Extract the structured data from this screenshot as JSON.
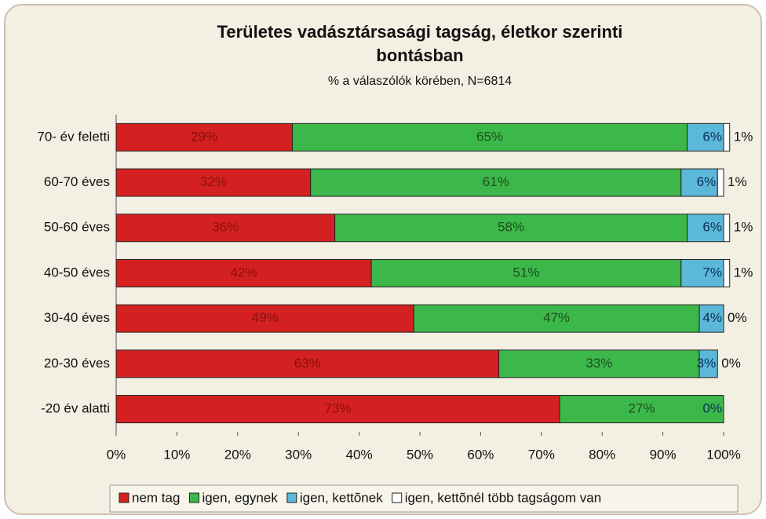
{
  "chart_data": {
    "type": "stacked_barh",
    "title": "Területes vadásztársasági tagság, életkor szerinti bontásban",
    "subtitle": "% a válaszólók körében, N=6814",
    "categories": [
      "70- év feletti",
      "60-70 éves",
      "50-60 éves",
      "40-50 éves",
      "30-40 éves",
      "20-30 éves",
      "-20 év alatti"
    ],
    "series": [
      {
        "name": "nem tag",
        "color": "#d42020",
        "values": [
          29,
          32,
          36,
          42,
          49,
          63,
          73
        ],
        "value_labels": [
          "29%",
          "32%",
          "36%",
          "42%",
          "49%",
          "63%",
          "73%"
        ]
      },
      {
        "name": "igen, egynek",
        "color": "#3cb84a",
        "values": [
          65,
          61,
          58,
          51,
          47,
          33,
          27
        ],
        "value_labels": [
          "65%",
          "61%",
          "58%",
          "51%",
          "47%",
          "33%",
          "27%"
        ]
      },
      {
        "name": "igen, kettõnek",
        "color": "#5cb8d8",
        "values": [
          6,
          6,
          6,
          7,
          4,
          3,
          0
        ],
        "value_labels": [
          "6%",
          "6%",
          "6%",
          "7%",
          "4%",
          "3%",
          "0%"
        ]
      },
      {
        "name": "igen, kettõnél több tagságom van",
        "color": "#ffffff",
        "values": [
          1,
          1,
          1,
          1,
          0,
          0,
          null
        ],
        "value_labels": [
          "1%",
          "1%",
          "1%",
          "1%",
          "0%",
          "0%",
          null
        ]
      }
    ],
    "xlim": [
      0,
      100
    ],
    "xticks": [
      {
        "value": 0,
        "label": "0%"
      },
      {
        "value": 10,
        "label": "10%"
      },
      {
        "value": 20,
        "label": "20%"
      },
      {
        "value": 30,
        "label": "30%"
      },
      {
        "value": 40,
        "label": "40%"
      },
      {
        "value": 50,
        "label": "50%"
      },
      {
        "value": 60,
        "label": "60%"
      },
      {
        "value": 70,
        "label": "70%"
      },
      {
        "value": 80,
        "label": "80%"
      },
      {
        "value": 90,
        "label": "90%"
      },
      {
        "value": 100,
        "label": "100%"
      }
    ],
    "legend": "bottom"
  }
}
